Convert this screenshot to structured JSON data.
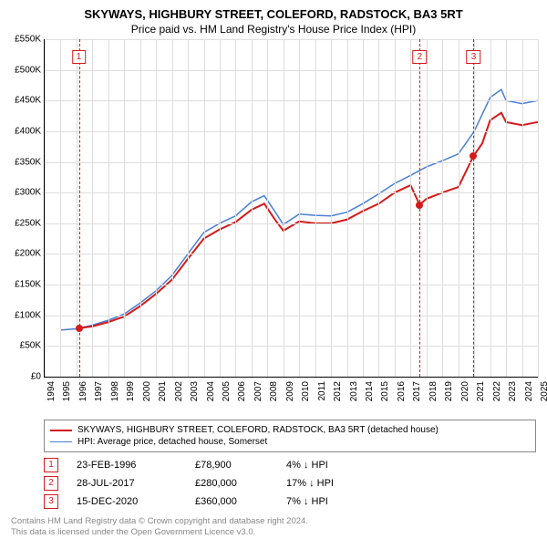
{
  "title": "SKYWAYS, HIGHBURY STREET, COLEFORD, RADSTOCK, BA3 5RT",
  "subtitle": "Price paid vs. HM Land Registry's House Price Index (HPI)",
  "chart": {
    "type": "line",
    "background_color": "#ffffff",
    "grid_color": "#dddddd",
    "axis_color": "#000000",
    "ylim": [
      0,
      550000
    ],
    "ytick_step": 50000,
    "y_format_prefix": "£",
    "y_format_suffix": "K",
    "y_divisor": 1000,
    "x_years": [
      1994,
      1995,
      1996,
      1997,
      1998,
      1999,
      2000,
      2001,
      2002,
      2003,
      2004,
      2005,
      2006,
      2007,
      2008,
      2009,
      2010,
      2011,
      2012,
      2013,
      2014,
      2015,
      2016,
      2017,
      2018,
      2019,
      2020,
      2021,
      2022,
      2023,
      2024,
      2025
    ],
    "series": [
      {
        "name": "hpi",
        "label": "HPI: Average price, detached house, Somerset",
        "color": "#4a7fd6",
        "width": 1.5,
        "points": [
          [
            1995.0,
            76000
          ],
          [
            1996.0,
            78000
          ],
          [
            1997.0,
            84000
          ],
          [
            1998.0,
            92000
          ],
          [
            1999.0,
            102000
          ],
          [
            2000.0,
            120000
          ],
          [
            2001.0,
            140000
          ],
          [
            2002.0,
            165000
          ],
          [
            2003.0,
            200000
          ],
          [
            2004.0,
            235000
          ],
          [
            2005.0,
            250000
          ],
          [
            2006.0,
            262000
          ],
          [
            2007.0,
            285000
          ],
          [
            2007.8,
            295000
          ],
          [
            2008.5,
            268000
          ],
          [
            2009.0,
            248000
          ],
          [
            2010.0,
            265000
          ],
          [
            2011.0,
            263000
          ],
          [
            2012.0,
            262000
          ],
          [
            2013.0,
            268000
          ],
          [
            2014.0,
            282000
          ],
          [
            2015.0,
            298000
          ],
          [
            2016.0,
            315000
          ],
          [
            2017.0,
            328000
          ],
          [
            2018.0,
            342000
          ],
          [
            2019.0,
            352000
          ],
          [
            2020.0,
            363000
          ],
          [
            2021.0,
            400000
          ],
          [
            2022.0,
            455000
          ],
          [
            2022.7,
            468000
          ],
          [
            2023.0,
            450000
          ],
          [
            2024.0,
            445000
          ],
          [
            2025.0,
            450000
          ]
        ]
      },
      {
        "name": "property",
        "label": "SKYWAYS, HIGHBURY STREET, COLEFORD, RADSTOCK, BA3 5RT (detached house)",
        "color": "#d61a1a",
        "width": 2,
        "points": [
          [
            1996.15,
            78900
          ],
          [
            1997.0,
            82000
          ],
          [
            1998.0,
            89000
          ],
          [
            1999.0,
            98000
          ],
          [
            2000.0,
            115000
          ],
          [
            2001.0,
            135000
          ],
          [
            2002.0,
            158000
          ],
          [
            2003.0,
            192000
          ],
          [
            2004.0,
            225000
          ],
          [
            2005.0,
            240000
          ],
          [
            2006.0,
            252000
          ],
          [
            2007.0,
            272000
          ],
          [
            2007.8,
            282000
          ],
          [
            2008.5,
            255000
          ],
          [
            2009.0,
            238000
          ],
          [
            2010.0,
            253000
          ],
          [
            2011.0,
            250000
          ],
          [
            2012.0,
            250000
          ],
          [
            2013.0,
            256000
          ],
          [
            2014.0,
            270000
          ],
          [
            2015.0,
            282000
          ],
          [
            2016.0,
            300000
          ],
          [
            2017.0,
            312000
          ],
          [
            2017.57,
            280000
          ],
          [
            2018.0,
            290000
          ],
          [
            2019.0,
            300000
          ],
          [
            2020.0,
            309000
          ],
          [
            2020.96,
            360000
          ],
          [
            2021.5,
            380000
          ],
          [
            2022.0,
            418000
          ],
          [
            2022.7,
            430000
          ],
          [
            2023.0,
            415000
          ],
          [
            2024.0,
            410000
          ],
          [
            2025.0,
            415000
          ]
        ]
      }
    ],
    "sales": [
      {
        "idx": "1",
        "year_frac": 1996.15,
        "date": "23-FEB-1996",
        "price": 78900,
        "price_label": "£78,900",
        "diff": "4% ↓ HPI",
        "marker_color": "#d61a1a",
        "vline_color": "#d61a1a",
        "vline_dash": "4,3"
      },
      {
        "idx": "2",
        "year_frac": 2017.57,
        "date": "28-JUL-2017",
        "price": 280000,
        "price_label": "£280,000",
        "diff": "17% ↓ HPI",
        "marker_color": "#d61a1a",
        "vline_color": "#d61a1a",
        "vline_dash": "4,3"
      },
      {
        "idx": "3",
        "year_frac": 2020.96,
        "date": "15-DEC-2020",
        "price": 360000,
        "price_label": "£360,000",
        "diff": "7% ↓ HPI",
        "marker_color": "#d61a1a",
        "vline_color": "#d61a1a",
        "vline_dash": "4,3"
      }
    ]
  },
  "footer": {
    "line1": "Contains HM Land Registry data © Crown copyright and database right 2024.",
    "line2": "This data is licensed under the Open Government Licence v3.0."
  }
}
